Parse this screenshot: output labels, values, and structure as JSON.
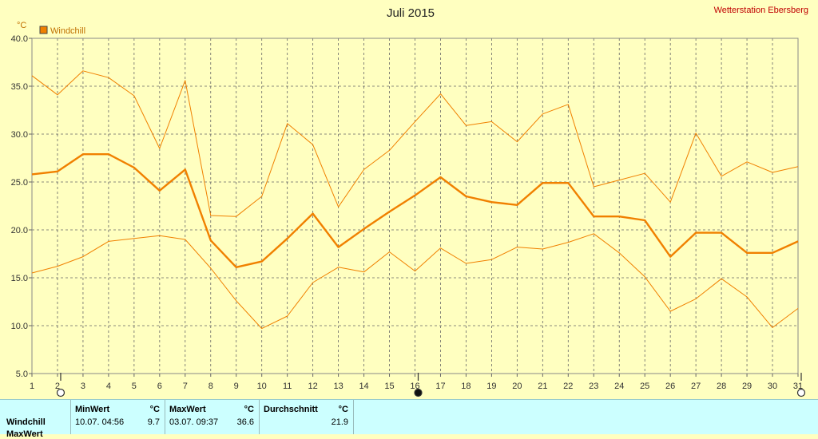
{
  "header": {
    "title": "Juli 2015",
    "station": "Wetterstation Ebersberg",
    "unit": "°C",
    "legend": "Windchill"
  },
  "colors": {
    "background": "#ffffc0",
    "line": "#f08000",
    "grid": "#666666",
    "panel": "#ccffff"
  },
  "chart_data": {
    "type": "line",
    "title": "Juli 2015",
    "ylabel": "°C",
    "xlim": [
      1,
      31
    ],
    "ylim": [
      5,
      40
    ],
    "grid": true,
    "legend_position": "top-left",
    "x": [
      1,
      2,
      3,
      4,
      5,
      6,
      7,
      8,
      9,
      10,
      11,
      12,
      13,
      14,
      15,
      16,
      17,
      18,
      19,
      20,
      21,
      22,
      23,
      24,
      25,
      26,
      27,
      28,
      29,
      30,
      31
    ],
    "x_ticks": [
      "1",
      "2",
      "3",
      "4",
      "5",
      "6",
      "7",
      "8",
      "9",
      "10",
      "11",
      "12",
      "13",
      "14",
      "15",
      "16",
      "17",
      "18",
      "19",
      "20",
      "21",
      "22",
      "23",
      "24",
      "25",
      "26",
      "27",
      "28",
      "29",
      "30",
      "31"
    ],
    "y_ticks": [
      "5.0",
      "10.0",
      "15.0",
      "20.0",
      "25.0",
      "30.0",
      "35.0",
      "40.0"
    ],
    "series": [
      {
        "name": "Windchill",
        "role": "mean",
        "values": [
          25.8,
          26.1,
          27.9,
          27.9,
          26.5,
          24.1,
          26.3,
          18.9,
          16.1,
          16.7,
          19.1,
          21.7,
          18.2,
          20.1,
          21.9,
          23.6,
          25.5,
          23.5,
          22.9,
          22.6,
          24.9,
          24.9,
          21.4,
          21.4,
          21.0,
          17.2,
          19.7,
          19.7,
          17.6,
          17.6,
          18.8
        ]
      },
      {
        "role": "max",
        "values": [
          36.1,
          34.1,
          36.6,
          35.9,
          34.0,
          28.5,
          35.6,
          21.5,
          21.4,
          23.5,
          31.1,
          28.9,
          22.4,
          26.3,
          28.3,
          31.3,
          34.2,
          30.9,
          31.3,
          29.2,
          32.1,
          33.1,
          24.5,
          25.2,
          25.9,
          22.9,
          30.1,
          25.6,
          27.1,
          26.0,
          26.6
        ]
      },
      {
        "role": "min",
        "values": [
          15.5,
          16.2,
          17.2,
          18.8,
          19.1,
          19.4,
          19.0,
          16.0,
          12.6,
          9.7,
          11.0,
          14.5,
          16.1,
          15.6,
          17.7,
          15.7,
          18.1,
          16.5,
          16.9,
          18.2,
          18.0,
          18.7,
          19.6,
          17.6,
          15.1,
          11.5,
          12.8,
          14.9,
          13.0,
          9.8,
          11.8
        ]
      }
    ]
  },
  "stats": {
    "row_labels": [
      "Windchill",
      "MaxWert"
    ],
    "min_header": "MinWert",
    "max_header": "MaxWert",
    "avg_header": "Durchschnitt",
    "unit": "°C",
    "min_time": "10.07.  04:56",
    "min_value": "9.7",
    "max_time": "03.07.  09:37",
    "max_value": "36.6",
    "avg_value": "21.9"
  }
}
